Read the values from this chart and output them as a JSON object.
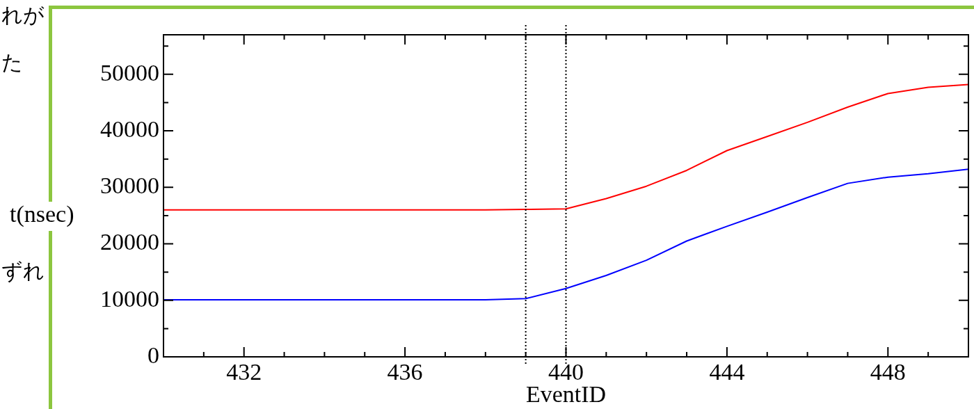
{
  "chart_data": {
    "type": "line",
    "xlabel": "EventID",
    "ylabel": "t(nsec)",
    "x": [
      430,
      431,
      432,
      433,
      434,
      435,
      436,
      437,
      438,
      439,
      440,
      441,
      442,
      443,
      444,
      445,
      446,
      447,
      448,
      449,
      450
    ],
    "series": [
      {
        "color": "#ff0000",
        "values": [
          26000,
          26000,
          26000,
          26000,
          26000,
          26000,
          26000,
          26000,
          26000,
          26100,
          26200,
          28000,
          30200,
          33000,
          36500,
          39000,
          41500,
          44200,
          46600,
          47700,
          48200
        ]
      },
      {
        "color": "#0000ff",
        "values": [
          10100,
          10100,
          10100,
          10100,
          10100,
          10100,
          10100,
          10100,
          10100,
          10300,
          12100,
          14400,
          17100,
          20500,
          23100,
          25600,
          28200,
          30700,
          31800,
          32400,
          33200
        ]
      }
    ],
    "xlim": [
      430,
      450
    ],
    "ylim": [
      0,
      57000
    ],
    "xticks": [
      {
        "value": 430,
        "label": null
      },
      {
        "value": 431,
        "label": null
      },
      432,
      {
        "value": 433,
        "label": null
      },
      {
        "value": 434,
        "label": null
      },
      {
        "value": 435,
        "label": null
      },
      436,
      {
        "value": 437,
        "label": null
      },
      {
        "value": 438,
        "label": null
      },
      {
        "value": 439,
        "label": null
      },
      440,
      {
        "value": 441,
        "label": null
      },
      {
        "value": 442,
        "label": null
      },
      {
        "value": 443,
        "label": null
      },
      444,
      {
        "value": 445,
        "label": null
      },
      {
        "value": 446,
        "label": null
      },
      {
        "value": 447,
        "label": null
      },
      448,
      {
        "value": 449,
        "label": null
      },
      {
        "value": 450,
        "label": null
      }
    ],
    "yticks": [
      0,
      {
        "value": 5000,
        "label": null
      },
      10000,
      {
        "value": 15000,
        "label": null
      },
      20000,
      {
        "value": 25000,
        "label": null
      },
      30000,
      {
        "value": 35000,
        "label": null
      },
      40000,
      {
        "value": 45000,
        "label": null
      },
      50000,
      {
        "value": 55000,
        "label": null
      }
    ],
    "ref_lines": [
      {
        "axis": "x",
        "value": 439,
        "color": "#000000",
        "line_style": "dotted"
      },
      {
        "axis": "x",
        "value": 440,
        "color": "#000000",
        "line_style": "dotted"
      }
    ],
    "annotations": [
      "れが",
      "た",
      "ずれ"
    ],
    "marker": "none",
    "line_style": "solid",
    "legend": false
  }
}
